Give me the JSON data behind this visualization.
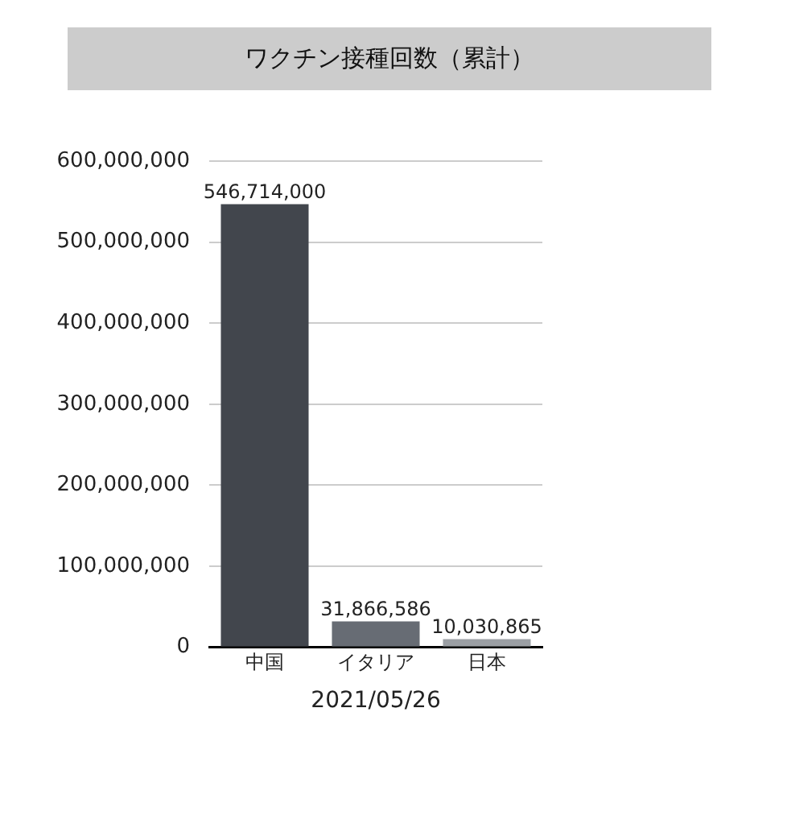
{
  "chart_data": {
    "type": "bar",
    "title": "ワクチン接種回数（累計）",
    "xlabel": "2021/05/26",
    "categories": [
      "中国",
      "イタリア",
      "日本"
    ],
    "values": [
      546714000,
      31866586,
      10030865
    ],
    "value_labels": [
      "546,714,000",
      "31,866,586",
      "10,030,865"
    ],
    "colors": [
      "#42464d",
      "#676c74",
      "#9b9fa4"
    ],
    "ylim": [
      0,
      600000000
    ],
    "yticks": [
      0,
      {
        "value": 100000000,
        "label": "100,000,000"
      },
      {
        "value": 200000000,
        "label": "200,000,000"
      },
      {
        "value": 300000000,
        "label": "300,000,000"
      },
      {
        "value": 400000000,
        "label": "400,000,000"
      },
      {
        "value": 500000000,
        "label": "500,000,000"
      },
      {
        "value": 600000000,
        "label": "600,000,000"
      }
    ],
    "grid": "y",
    "legend": false
  }
}
